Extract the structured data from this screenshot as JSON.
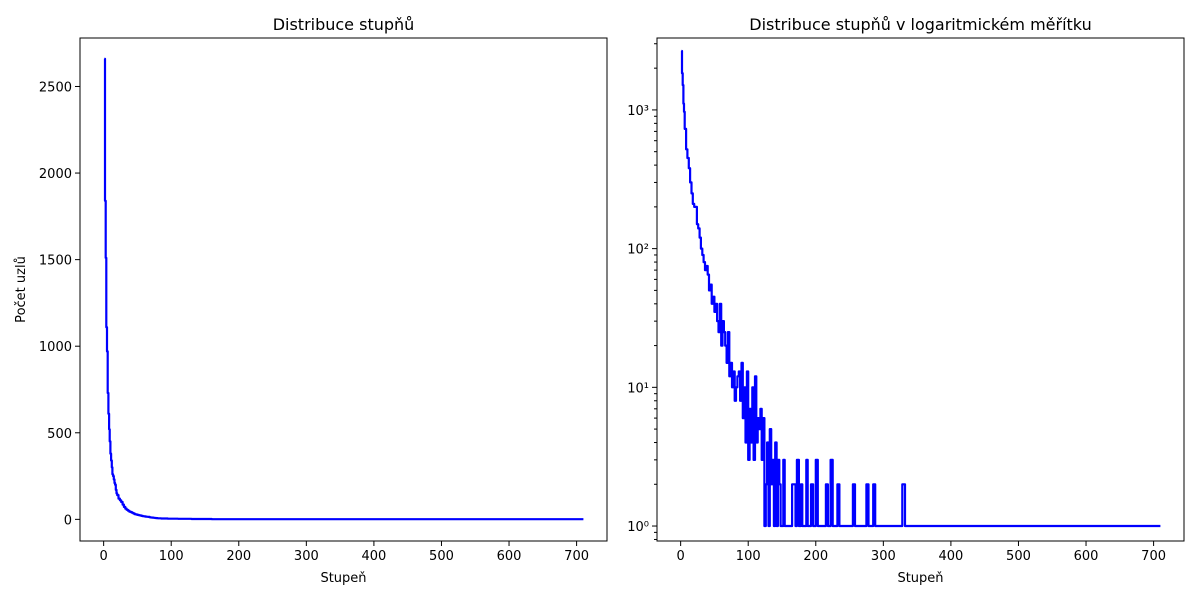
{
  "chart_data": [
    {
      "type": "line",
      "title": "Distribuce stupňů",
      "xlabel": "Stupeň",
      "ylabel": "Počet uzlů",
      "xscale": "linear",
      "yscale": "linear",
      "xlim": [
        -35,
        745
      ],
      "ylim": [
        -125,
        2780
      ],
      "xticks": [
        0,
        100,
        200,
        300,
        400,
        500,
        600,
        700
      ],
      "yticks": [
        0,
        500,
        1000,
        1500,
        2000,
        2500
      ],
      "grid": false,
      "series_color": "#0000ff",
      "x": [
        1,
        2,
        3,
        4,
        5,
        6,
        7,
        8,
        9,
        10,
        11,
        12,
        13,
        14,
        15,
        16,
        17,
        18,
        19,
        20,
        22,
        24,
        26,
        28,
        30,
        32,
        34,
        36,
        38,
        40,
        42,
        44,
        46,
        48,
        50,
        52,
        54,
        56,
        58,
        60,
        62,
        64,
        66,
        68,
        70,
        72,
        74,
        76,
        78,
        80,
        85,
        90,
        95,
        100,
        110,
        120,
        130,
        140,
        150,
        160,
        170,
        180,
        190,
        200,
        220,
        240,
        260,
        280,
        300,
        330,
        360,
        400,
        500,
        600,
        710
      ],
      "y": [
        2660,
        1840,
        1510,
        1110,
        970,
        730,
        610,
        520,
        450,
        380,
        340,
        300,
        260,
        250,
        230,
        210,
        200,
        170,
        150,
        140,
        120,
        110,
        100,
        85,
        72,
        62,
        55,
        50,
        45,
        42,
        38,
        34,
        30,
        28,
        26,
        24,
        22,
        20,
        18,
        17,
        16,
        15,
        14,
        12,
        11,
        10,
        9,
        8,
        7,
        6,
        5,
        5,
        4,
        4,
        3,
        3,
        2,
        2,
        2,
        1,
        1,
        1,
        1,
        1,
        1,
        1,
        1,
        1,
        1,
        1,
        1,
        1,
        1,
        1,
        1
      ]
    },
    {
      "type": "line",
      "title": "Distribuce stupňů v logaritmickém měřítku",
      "xlabel": "Stupeň",
      "ylabel": "",
      "xscale": "linear",
      "yscale": "log",
      "xlim": [
        -35,
        745
      ],
      "ylim": [
        0.78,
        3300
      ],
      "xticks": [
        0,
        100,
        200,
        300,
        400,
        500,
        600,
        700
      ],
      "yticks": [
        1,
        10,
        100,
        1000
      ],
      "ytick_labels": [
        "10⁰",
        "10¹",
        "10²",
        "10³"
      ],
      "grid": false,
      "series_color": "#0000ff",
      "x": [
        1,
        2,
        3,
        4,
        5,
        6,
        8,
        10,
        12,
        14,
        16,
        18,
        20,
        22,
        24,
        26,
        28,
        30,
        32,
        34,
        36,
        38,
        40,
        42,
        44,
        46,
        48,
        50,
        52,
        54,
        56,
        58,
        60,
        62,
        64,
        66,
        68,
        70,
        72,
        74,
        76,
        78,
        80,
        82,
        84,
        86,
        88,
        90,
        92,
        94,
        96,
        98,
        100,
        102,
        104,
        106,
        108,
        110,
        112,
        114,
        116,
        118,
        120,
        122,
        124,
        126,
        128,
        130,
        132,
        134,
        136,
        138,
        140,
        142,
        144,
        146,
        148,
        150,
        152,
        154,
        156,
        158,
        160,
        165,
        170,
        172,
        175,
        178,
        180,
        183,
        186,
        188,
        190,
        193,
        196,
        198,
        200,
        203,
        210,
        215,
        218,
        220,
        222,
        225,
        228,
        232,
        235,
        238,
        245,
        255,
        258,
        262,
        270,
        275,
        278,
        283,
        285,
        288,
        300,
        320,
        328,
        330,
        332,
        340,
        400,
        500,
        600,
        710
      ],
      "y": [
        2660,
        1840,
        1510,
        1110,
        970,
        730,
        520,
        450,
        380,
        300,
        250,
        210,
        200,
        200,
        150,
        140,
        120,
        100,
        90,
        80,
        70,
        75,
        65,
        50,
        55,
        40,
        45,
        35,
        40,
        30,
        25,
        40,
        20,
        30,
        25,
        20,
        15,
        25,
        12,
        15,
        10,
        13,
        8,
        10,
        12,
        13,
        8,
        15,
        6,
        10,
        4,
        13,
        3,
        7,
        4,
        10,
        3,
        12,
        4,
        6,
        5,
        7,
        3,
        6,
        1,
        2,
        4,
        1,
        5,
        2,
        3,
        1,
        4,
        1,
        3,
        2,
        1,
        1,
        3,
        1,
        1,
        1,
        1,
        2,
        1,
        3,
        1,
        2,
        1,
        1,
        3,
        1,
        1,
        2,
        1,
        1,
        3,
        1,
        1,
        2,
        1,
        1,
        3,
        1,
        1,
        2,
        1,
        1,
        1,
        2,
        1,
        1,
        1,
        2,
        1,
        1,
        2,
        1,
        1,
        1,
        2,
        2,
        1,
        1,
        1,
        1,
        1,
        1
      ]
    }
  ]
}
